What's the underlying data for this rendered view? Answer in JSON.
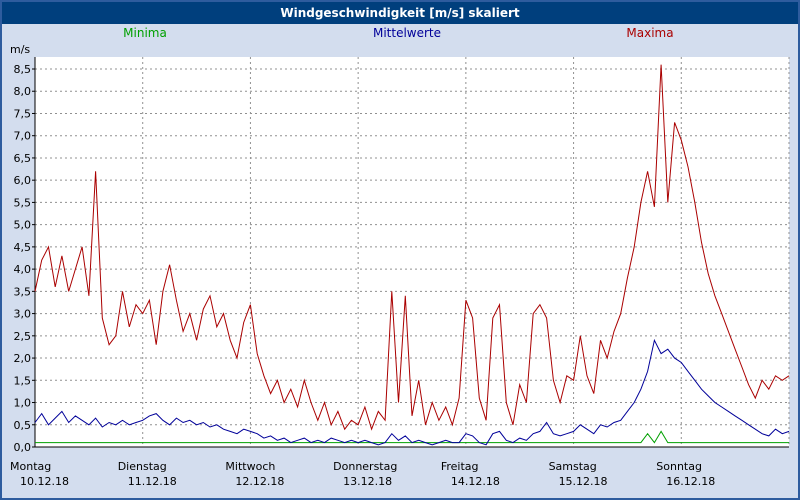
{
  "window": {
    "title": "Windgeschwindigkeit [m/s] skaliert"
  },
  "colors": {
    "background": "#d3ddee",
    "titlebar": "#003f7d",
    "titlebar_text": "#ffffff",
    "window_border": "#2e5c9e",
    "plot_bg": "#ffffff",
    "grid": "#909090",
    "axis": "#000000"
  },
  "legend": [
    {
      "label": "Minima",
      "color": "#00a000"
    },
    {
      "label": "Mittelwerte",
      "color": "#000099"
    },
    {
      "label": "Maxima",
      "color": "#aa0000"
    }
  ],
  "chart_data": {
    "type": "line",
    "title": "Windgeschwindigkeit [m/s] skaliert",
    "ylabel": "m/s",
    "xlabel": "",
    "ylim": [
      0,
      8.5
    ],
    "ytick_step": 0.5,
    "ytick_format": "decimal-comma",
    "grid": "dashed",
    "legend_position": "top",
    "x_days": [
      {
        "day": "Montag",
        "date": "10.12.18"
      },
      {
        "day": "Dienstag",
        "date": "11.12.18"
      },
      {
        "day": "Mittwoch",
        "date": "12.12.18"
      },
      {
        "day": "Donnerstag",
        "date": "13.12.18"
      },
      {
        "day": "Freitag",
        "date": "14.12.18"
      },
      {
        "day": "Samstag",
        "date": "15.12.18"
      },
      {
        "day": "Sonntag",
        "date": "16.12.18"
      }
    ],
    "points_per_day": 16,
    "series": [
      {
        "name": "Minima",
        "color": "#00a000",
        "values": [
          0.1,
          0.1,
          0.1,
          0.1,
          0.1,
          0.1,
          0.1,
          0.1,
          0.1,
          0.1,
          0.1,
          0.1,
          0.1,
          0.1,
          0.1,
          0.1,
          0.1,
          0.1,
          0.1,
          0.1,
          0.1,
          0.1,
          0.1,
          0.1,
          0.1,
          0.1,
          0.1,
          0.1,
          0.1,
          0.1,
          0.1,
          0.1,
          0.1,
          0.1,
          0.1,
          0.1,
          0.1,
          0.1,
          0.1,
          0.1,
          0.1,
          0.1,
          0.1,
          0.1,
          0.1,
          0.1,
          0.1,
          0.1,
          0.1,
          0.1,
          0.1,
          0.1,
          0.1,
          0.1,
          0.1,
          0.1,
          0.1,
          0.1,
          0.1,
          0.1,
          0.1,
          0.1,
          0.1,
          0.1,
          0.1,
          0.1,
          0.1,
          0.1,
          0.1,
          0.1,
          0.1,
          0.1,
          0.1,
          0.1,
          0.1,
          0.1,
          0.1,
          0.1,
          0.1,
          0.1,
          0.1,
          0.1,
          0.1,
          0.1,
          0.1,
          0.1,
          0.1,
          0.1,
          0.1,
          0.1,
          0.1,
          0.3,
          0.1,
          0.35,
          0.1,
          0.1,
          0.1,
          0.1,
          0.1,
          0.1,
          0.1,
          0.1,
          0.1,
          0.1,
          0.1,
          0.1,
          0.1,
          0.1,
          0.1,
          0.1,
          0.1,
          0.1,
          0.1
        ]
      },
      {
        "name": "Mittelwerte",
        "color": "#000099",
        "values": [
          0.55,
          0.75,
          0.5,
          0.65,
          0.8,
          0.55,
          0.7,
          0.6,
          0.5,
          0.65,
          0.45,
          0.55,
          0.5,
          0.6,
          0.5,
          0.55,
          0.6,
          0.7,
          0.75,
          0.6,
          0.5,
          0.65,
          0.55,
          0.6,
          0.5,
          0.55,
          0.45,
          0.5,
          0.4,
          0.35,
          0.3,
          0.4,
          0.35,
          0.3,
          0.2,
          0.25,
          0.15,
          0.2,
          0.1,
          0.15,
          0.2,
          0.1,
          0.15,
          0.1,
          0.2,
          0.15,
          0.1,
          0.15,
          0.1,
          0.15,
          0.1,
          0.05,
          0.1,
          0.3,
          0.15,
          0.25,
          0.1,
          0.15,
          0.1,
          0.05,
          0.1,
          0.15,
          0.1,
          0.1,
          0.3,
          0.25,
          0.1,
          0.05,
          0.3,
          0.35,
          0.15,
          0.1,
          0.2,
          0.15,
          0.3,
          0.35,
          0.55,
          0.3,
          0.25,
          0.3,
          0.35,
          0.5,
          0.4,
          0.3,
          0.5,
          0.45,
          0.55,
          0.6,
          0.8,
          1.0,
          1.3,
          1.7,
          2.4,
          2.1,
          2.2,
          2.0,
          1.9,
          1.7,
          1.5,
          1.3,
          1.15,
          1.0,
          0.9,
          0.8,
          0.7,
          0.6,
          0.5,
          0.4,
          0.3,
          0.25,
          0.4,
          0.3,
          0.35
        ]
      },
      {
        "name": "Maxima",
        "color": "#aa0000",
        "values": [
          3.5,
          4.2,
          4.5,
          3.6,
          4.3,
          3.5,
          4.0,
          4.5,
          3.4,
          6.2,
          2.9,
          2.3,
          2.5,
          3.5,
          2.7,
          3.2,
          3.0,
          3.3,
          2.3,
          3.5,
          4.1,
          3.3,
          2.6,
          3.0,
          2.4,
          3.1,
          3.4,
          2.7,
          3.0,
          2.4,
          2.0,
          2.8,
          3.2,
          2.1,
          1.6,
          1.2,
          1.5,
          1.0,
          1.3,
          0.9,
          1.5,
          1.0,
          0.6,
          1.0,
          0.5,
          0.8,
          0.4,
          0.6,
          0.5,
          0.9,
          0.4,
          0.8,
          0.6,
          3.5,
          1.0,
          3.4,
          0.7,
          1.5,
          0.5,
          1.0,
          0.6,
          0.9,
          0.5,
          1.1,
          3.3,
          2.9,
          1.1,
          0.6,
          2.9,
          3.2,
          1.0,
          0.5,
          1.4,
          1.0,
          3.0,
          3.2,
          2.9,
          1.5,
          1.0,
          1.6,
          1.5,
          2.5,
          1.6,
          1.2,
          2.4,
          2.0,
          2.6,
          3.0,
          3.8,
          4.5,
          5.5,
          6.2,
          5.4,
          8.6,
          5.5,
          7.3,
          6.9,
          6.3,
          5.5,
          4.6,
          3.9,
          3.4,
          3.0,
          2.6,
          2.2,
          1.8,
          1.4,
          1.1,
          1.5,
          1.3,
          1.6,
          1.5,
          1.6
        ]
      }
    ]
  }
}
